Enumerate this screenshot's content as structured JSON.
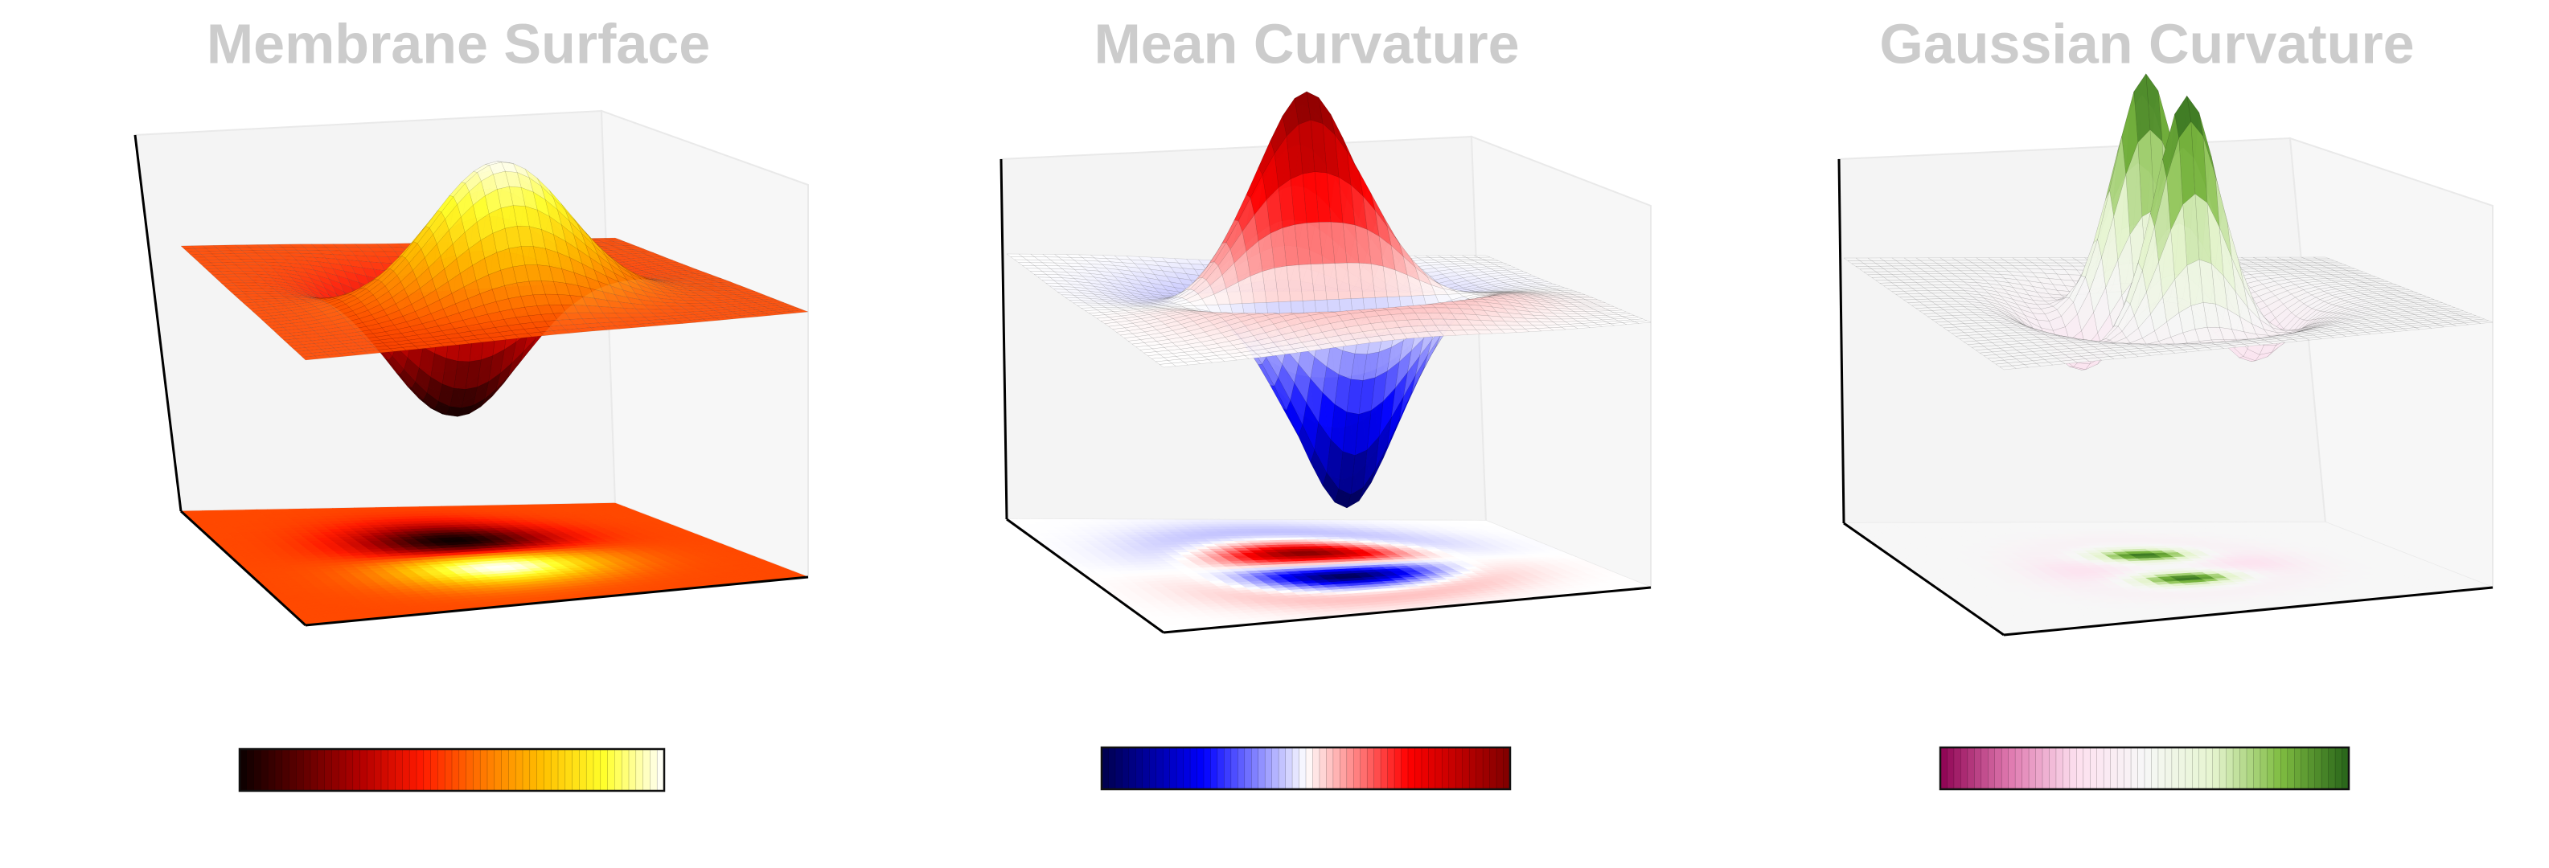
{
  "chart_data": [
    {
      "type": "surface",
      "title": "Membrane Surface",
      "function": "x * exp(-(x^2 + y^2))",
      "colormap": "hot",
      "colors": [
        "#0b0000",
        "#5e0000",
        "#b30000",
        "#ff1a00",
        "#ff7700",
        "#ffc000",
        "#ffff2a",
        "#ffffff"
      ],
      "contour_projection": true,
      "colorbar": "horizontal",
      "grid": false,
      "axis_ticks": false
    },
    {
      "type": "surface",
      "title": "Mean Curvature",
      "function": "mean curvature of x * exp(-(x^2 + y^2))",
      "colormap": "seismic",
      "colors": [
        "#00004c",
        "#0000ff",
        "#ffffff",
        "#ff0000",
        "#7f0000"
      ],
      "contour_projection": true,
      "colorbar": "horizontal",
      "grid": false,
      "axis_ticks": false
    },
    {
      "type": "surface",
      "title": "Gaussian Curvature",
      "function": "Gaussian curvature of x * exp(-(x^2 + y^2))",
      "colormap": "PiYG",
      "colors": [
        "#8e0152",
        "#de77ae",
        "#fde0ef",
        "#f7f7f7",
        "#e6f5d0",
        "#7fbc41",
        "#276419"
      ],
      "contour_projection": true,
      "colorbar": "horizontal",
      "grid": false,
      "axis_ticks": false
    }
  ]
}
